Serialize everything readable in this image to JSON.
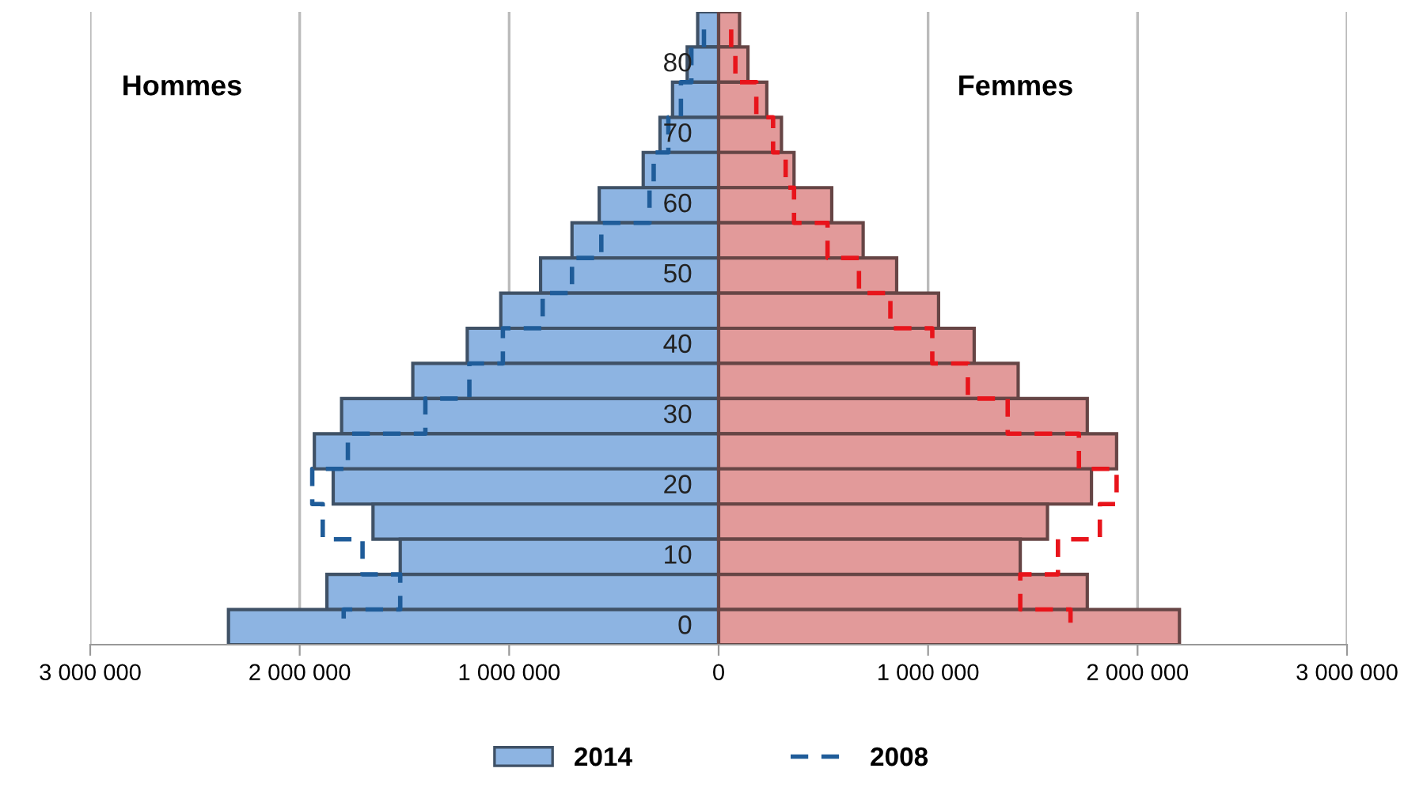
{
  "chart_data": {
    "type": "bar",
    "orientation": "horizontal",
    "stacked": true,
    "categories": [
      null,
      "80",
      null,
      "70",
      null,
      "60",
      null,
      "50",
      null,
      "40",
      null,
      "30",
      null,
      "20",
      null,
      "10",
      null,
      "0"
    ],
    "series": [
      {
        "name": "2014",
        "color": "#8db4e2",
        "line_style": "solid",
        "values": [
          -100000,
          -150000,
          -220000,
          -280000,
          -360000,
          -570000,
          -700000,
          -850000,
          -1040000,
          -1200000,
          -1460000,
          -1800000,
          -1930000,
          -1840000,
          -1650000,
          -1520000,
          -1870000,
          -2340000
        ]
      },
      {
        "name": "2008",
        "type": "step",
        "color": "#1f5c99",
        "line_style": "dashed",
        "values": [
          -70000,
          -130000,
          -180000,
          -240000,
          -310000,
          -330000,
          -560000,
          -700000,
          -840000,
          -1030000,
          -1190000,
          -1400000,
          -1770000,
          -1940000,
          -1890000,
          -1700000,
          -1520000,
          -1790000
        ]
      },
      {
        "color": "#e29a9a",
        "line_style": "solid",
        "values": [
          100000,
          140000,
          230000,
          300000,
          360000,
          540000,
          690000,
          850000,
          1050000,
          1220000,
          1430000,
          1760000,
          1900000,
          1780000,
          1570000,
          1440000,
          1760000,
          2200000
        ]
      },
      {
        "type": "step",
        "color": "#e8141b",
        "line_style": "dashed",
        "values": [
          60000,
          80000,
          180000,
          260000,
          320000,
          360000,
          520000,
          670000,
          820000,
          1020000,
          1190000,
          1380000,
          1720000,
          1900000,
          1820000,
          1620000,
          1440000,
          1680000
        ]
      }
    ],
    "annotations": [
      "Hommes",
      "Femmes"
    ],
    "xlim": [
      -3000000,
      3000000
    ],
    "xticks": [
      {
        "value": -3000000,
        "label": "3 000 000"
      },
      {
        "value": -2000000,
        "label": "2 000 000"
      },
      {
        "value": -1000000,
        "label": "1 000 000"
      },
      0,
      {
        "value": 1000000,
        "label": "1 000 000"
      },
      {
        "value": 2000000,
        "label": "2 000 000"
      },
      {
        "value": 3000000,
        "label": "3 000 000"
      }
    ],
    "grid": "x",
    "legend": "bottom"
  }
}
